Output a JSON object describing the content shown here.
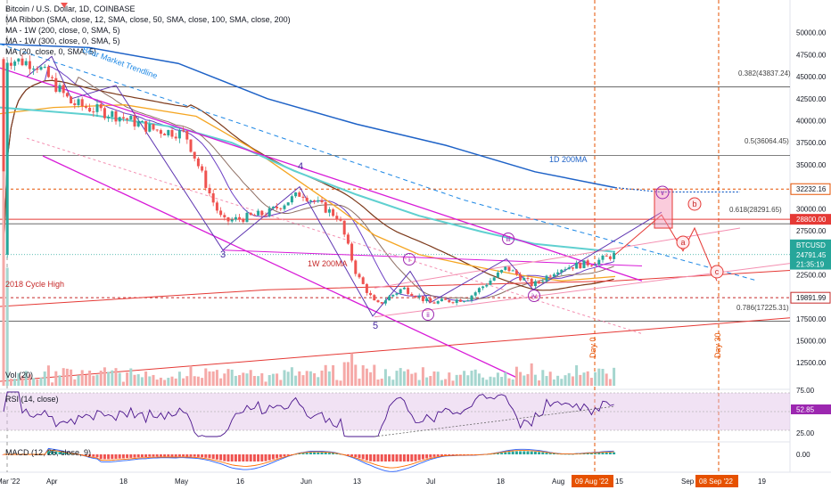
{
  "header": {
    "title": "Bitcoin / U.S. Dollar, 1D, COINBASE",
    "indicators": [
      "MA Ribbon (SMA, close, 12, SMA, close, 50, SMA, close, 100, SMA, close, 200)",
      "MA - 1W (200, close, 0, SMA, 5)",
      "MA - 1W (300, close, 0, SMA, 5)",
      "MA (20, close, 0, SMA, 5)"
    ]
  },
  "price_axis": {
    "ticks": [
      "50000.00",
      "47500.00",
      "45000.00",
      "42500.00",
      "40000.00",
      "37500.00",
      "35000.00",
      "32500.00",
      "30000.00",
      "27500.00",
      "25000.00",
      "22500.00",
      "20000.00",
      "17500.00",
      "15000.00",
      "12500.00"
    ],
    "tick_values": [
      50000,
      47500,
      45000,
      42500,
      40000,
      37500,
      35000,
      32500,
      30000,
      27500,
      25000,
      22500,
      20000,
      17500,
      15000,
      12500
    ],
    "ymin": 10500,
    "ymax": 53000
  },
  "price_tags": [
    {
      "text": "32232.16",
      "value": 32232.16,
      "style": "outline",
      "color": "#e65100"
    },
    {
      "text": "28800.00",
      "value": 28800,
      "style": "fill",
      "color": "#e53935"
    },
    {
      "text": "BTCUSD",
      "value": 25900,
      "style": "fill",
      "color": "#26a69a"
    },
    {
      "text": "24791.45",
      "value": 24791.45,
      "style": "fill",
      "color": "#26a69a"
    },
    {
      "text": "21:35:19",
      "value": 23700,
      "style": "fill",
      "color": "#26a69a"
    },
    {
      "text": "19891.99",
      "value": 19891.99,
      "style": "outline",
      "color": "#c62828"
    }
  ],
  "fib_levels": [
    {
      "text": "0.382(43837.24)",
      "value": 43837.24
    },
    {
      "text": "0.5(36064.45)",
      "value": 36064.45
    },
    {
      "text": "0.618(28291.65)",
      "value": 28291.65
    },
    {
      "text": "0.786(17225.31)",
      "value": 17225.31
    }
  ],
  "annotations": [
    {
      "text": "Bear Market Trendline",
      "color": "#1e88e5"
    },
    {
      "text": "1D 200MA",
      "color": "#1e62c7"
    },
    {
      "text": "1W 200MA",
      "color": "#c62828"
    },
    {
      "text": "2018 Cycle High",
      "color": "#c62828"
    },
    {
      "text": "Day 0",
      "color": "#e65100"
    },
    {
      "text": "Day 30",
      "color": "#e65100"
    }
  ],
  "wave_labels": {
    "impulse": [
      "3",
      "4",
      "5"
    ],
    "minor": [
      "i",
      "ii",
      "iii",
      "iv",
      "v"
    ],
    "corrective": [
      "a",
      "b",
      "c"
    ]
  },
  "time_axis": {
    "labels": [
      "Mar '22",
      "Apr",
      "18",
      "May",
      "16",
      "Jun",
      "13",
      "Jul",
      "18",
      "Aug",
      "15",
      "Sep",
      "19"
    ],
    "highlight_labels": [
      "09 Aug '22",
      "08 Sep '22"
    ]
  },
  "panes": {
    "vol": {
      "label": "Vol (20)"
    },
    "rsi": {
      "label": "RSI (14, close)",
      "ticks": [
        "75.00",
        "52.85",
        "25.00"
      ],
      "value_tag": "52.85"
    },
    "macd": {
      "label": "MACD (12, 26, close, 9)",
      "ticks": [
        "0.00"
      ]
    }
  },
  "colors": {
    "up": "#26a69a",
    "down": "#ef5350",
    "ma12": "#6c3fc4",
    "ma50": "#7d3a1b",
    "ma100": "#f5a623",
    "ma200": "#5fd0d0",
    "ma1d200": "#1e62c7",
    "w200": "#e53935",
    "magenta": "#d81bd8",
    "pink": "#f48fb1",
    "orange": "#e65100"
  },
  "chart_data": {
    "type": "candlestick",
    "title": "Bitcoin / U.S. Dollar, 1D, COINBASE",
    "ylim": [
      10500,
      53000
    ],
    "approx_close_path": [
      {
        "x": "Mar 28 '22",
        "y": 47000
      },
      {
        "x": "Apr 04",
        "y": 46500
      },
      {
        "x": "Apr 11",
        "y": 42000
      },
      {
        "x": "Apr 18",
        "y": 40500
      },
      {
        "x": "Apr 25",
        "y": 39000
      },
      {
        "x": "May 02",
        "y": 38500
      },
      {
        "x": "May 09",
        "y": 31000
      },
      {
        "x": "May 12",
        "y": 28500
      },
      {
        "x": "May 23",
        "y": 29500
      },
      {
        "x": "Jun 01",
        "y": 31800
      },
      {
        "x": "Jun 10",
        "y": 29000
      },
      {
        "x": "Jun 13",
        "y": 22500
      },
      {
        "x": "Jun 18",
        "y": 19000
      },
      {
        "x": "Jun 25",
        "y": 21000
      },
      {
        "x": "Jul 02",
        "y": 19300
      },
      {
        "x": "Jul 12",
        "y": 19800
      },
      {
        "x": "Jul 20",
        "y": 23300
      },
      {
        "x": "Jul 26",
        "y": 21300
      },
      {
        "x": "Aug 01",
        "y": 23200
      },
      {
        "x": "Aug 10",
        "y": 23900
      },
      {
        "x": "Aug 14",
        "y": 24791.45
      }
    ],
    "last_price": 24791.45,
    "projection_path": [
      {
        "x": "Aug 14",
        "y": 24791
      },
      {
        "x": "Aug 21",
        "y": 28800
      },
      {
        "x": "Aug 25",
        "y": 25300
      },
      {
        "x": "Aug 28",
        "y": 28000
      },
      {
        "x": "Sep 03",
        "y": 21800
      }
    ]
  }
}
